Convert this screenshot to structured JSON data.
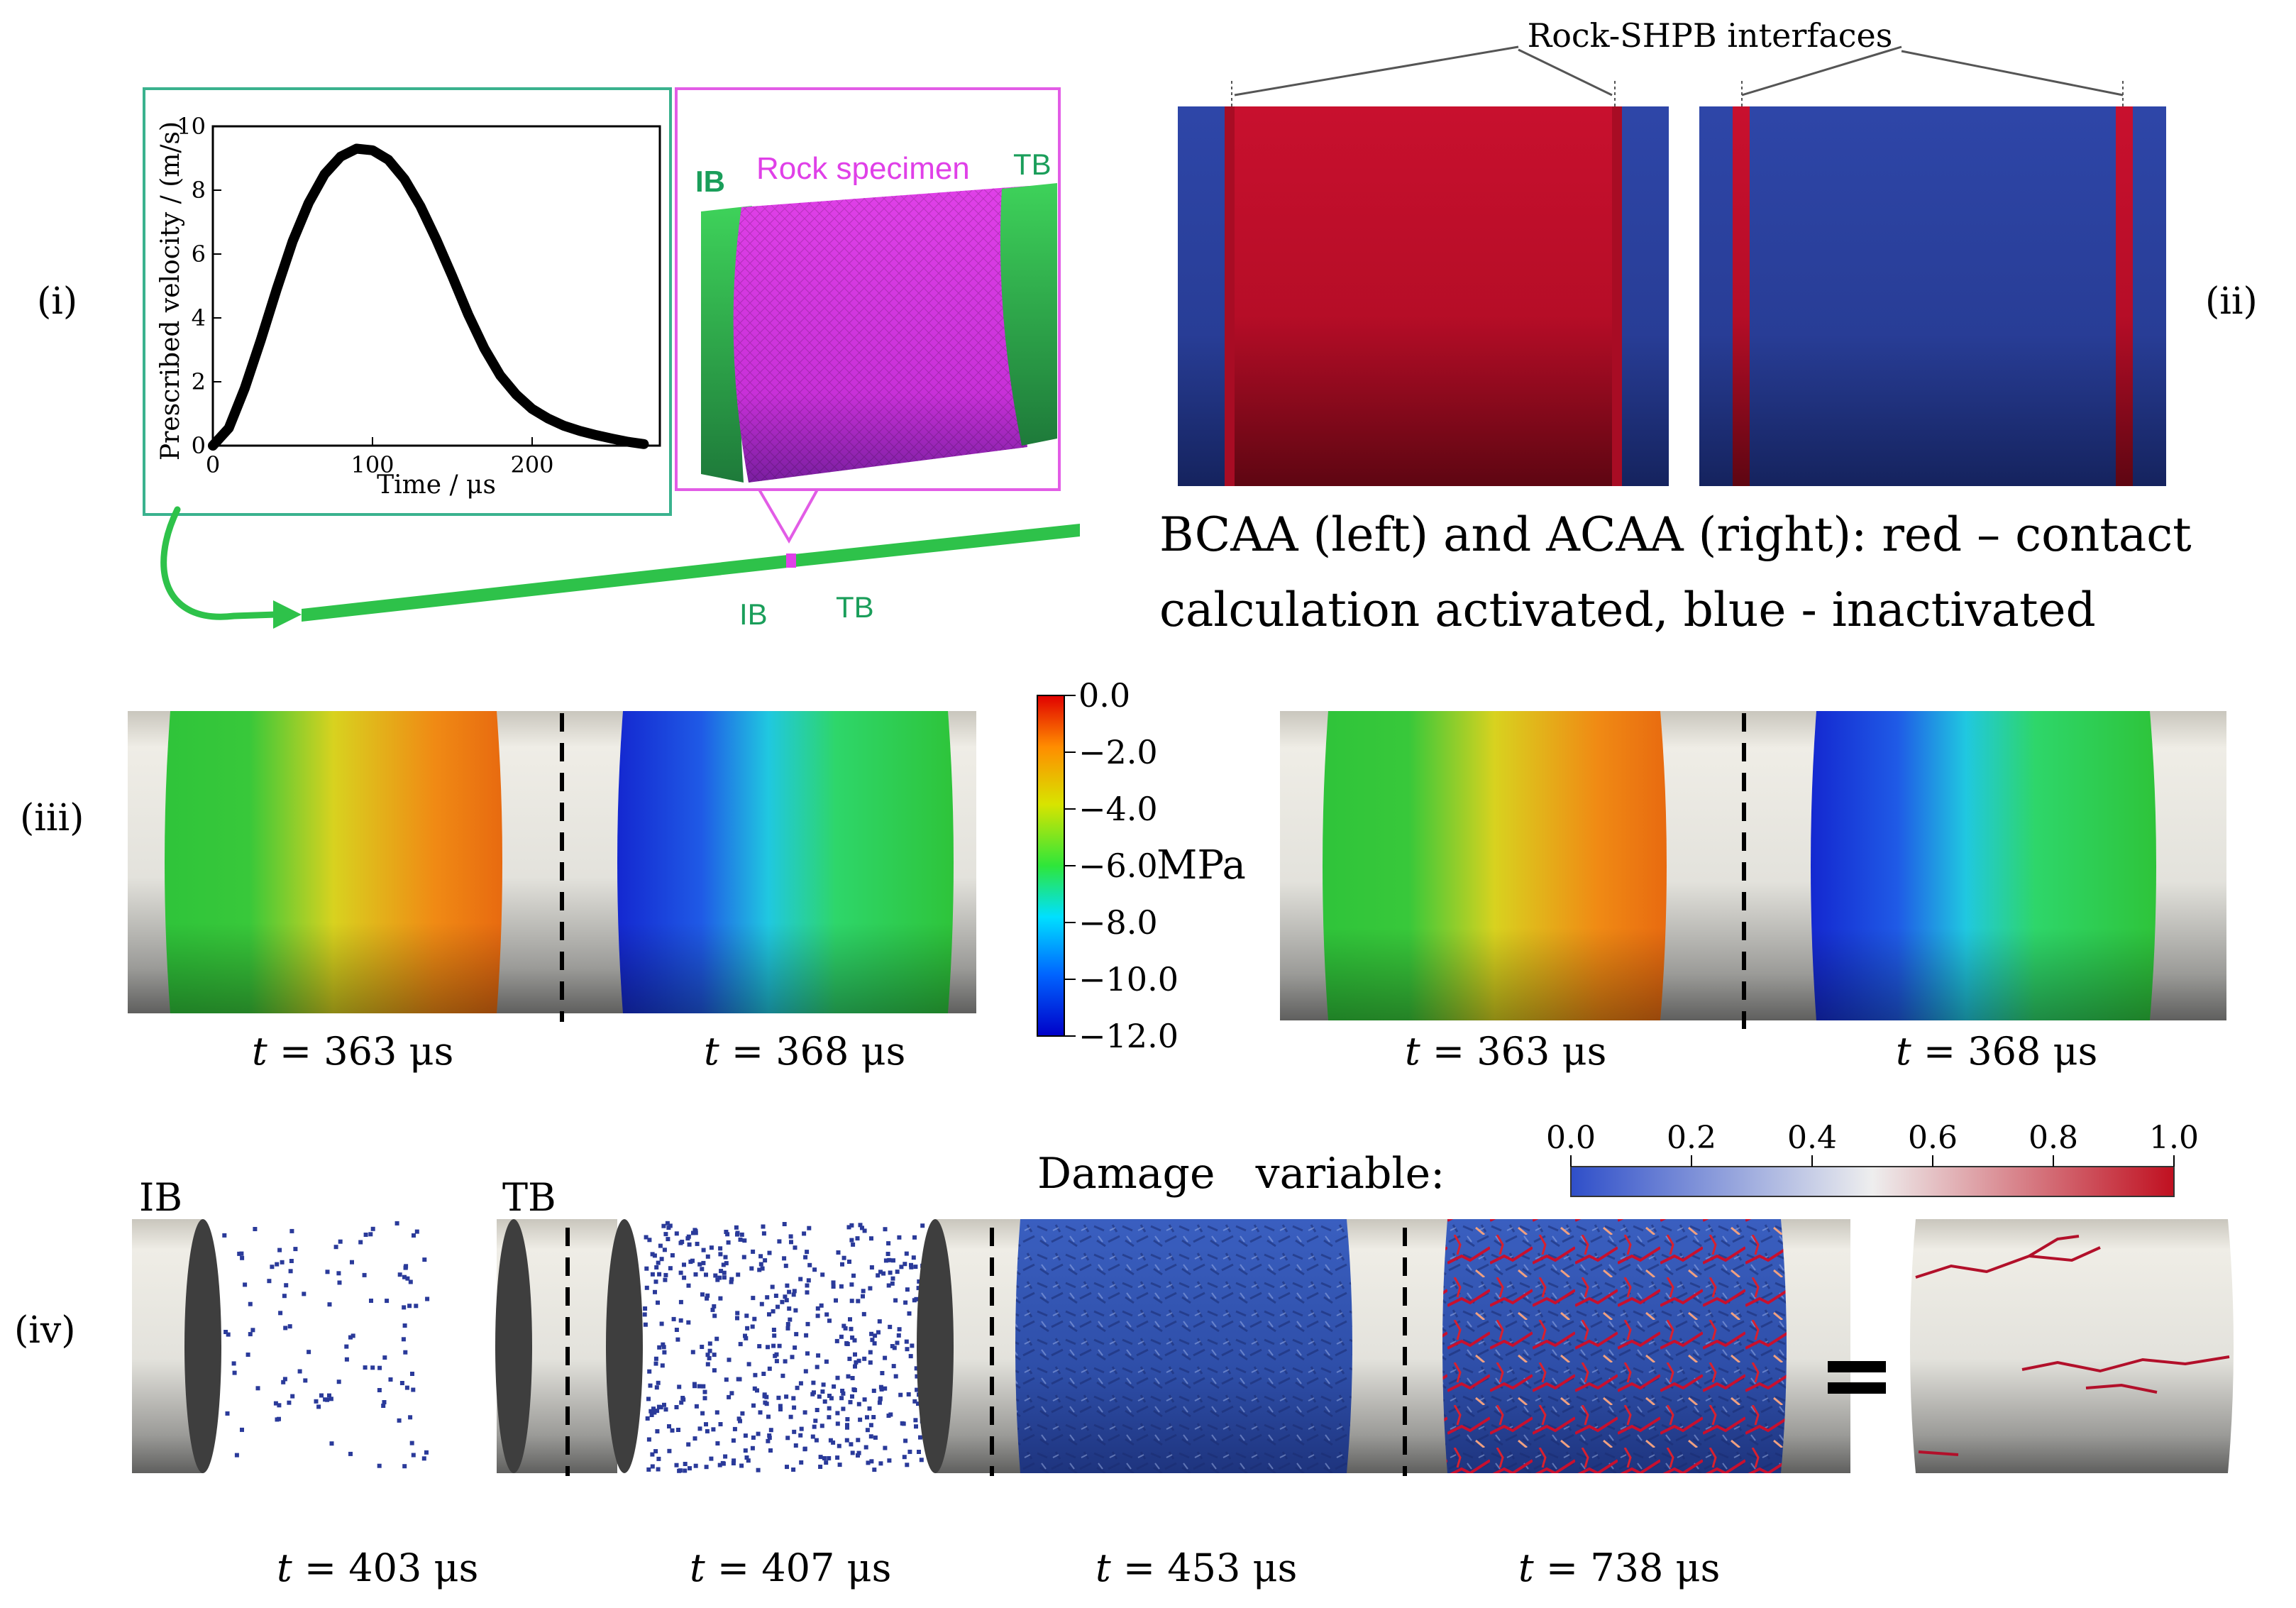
{
  "panels": {
    "i": "(i)",
    "ii": "(ii)",
    "iii": "(iii)",
    "iv": "(iv)"
  },
  "panel_i": {
    "chart_data": {
      "type": "line",
      "x": [
        0,
        10,
        20,
        30,
        40,
        50,
        60,
        70,
        80,
        90,
        100,
        110,
        120,
        130,
        140,
        150,
        160,
        170,
        180,
        190,
        200,
        210,
        220,
        230,
        240,
        250,
        260,
        270
      ],
      "y": [
        0,
        0.55,
        1.8,
        3.3,
        4.9,
        6.4,
        7.6,
        8.5,
        9.05,
        9.3,
        9.25,
        8.95,
        8.35,
        7.5,
        6.45,
        5.3,
        4.1,
        3.05,
        2.2,
        1.6,
        1.15,
        0.85,
        0.62,
        0.46,
        0.33,
        0.22,
        0.12,
        0.05
      ],
      "xlabel": "Time / μs",
      "ylabel": "Prescribed velocity / (m/s)",
      "xlim": [
        0,
        280
      ],
      "ylim": [
        0,
        10
      ],
      "xticks": [
        0,
        100,
        200
      ],
      "yticks": [
        0,
        2,
        4,
        6,
        8,
        10
      ],
      "color": "#000000"
    },
    "mesh_labels": {
      "ib": "IB",
      "rock": "Rock specimen",
      "tb": "TB"
    },
    "bar_labels": {
      "ib": "IB",
      "tb": "TB"
    }
  },
  "panel_ii": {
    "interfaces_label": "Rock-SHPB interfaces",
    "caption_line1": "BCAA (left) and ACAA (right): red – contact",
    "caption_line2": "calculation activated, blue - inactivated"
  },
  "panel_iii": {
    "colorbar": {
      "ticks": [
        "0.0",
        "−2.0",
        "−4.0",
        "−6.0",
        "−8.0",
        "−10.0",
        "−12.0"
      ],
      "unit": "MPa"
    },
    "times": {
      "left_a": "363 μs",
      "left_b": "368 μs",
      "right_a": "363 μs",
      "right_b": "368 μs"
    },
    "t_symbol": "t",
    "eq": " = "
  },
  "panel_iv": {
    "damage_label": "Damage   variable:",
    "colorbar_ticks": [
      "0.0",
      "0.2",
      "0.4",
      "0.6",
      "0.8",
      "1.0"
    ],
    "ib": "IB",
    "tb": "TB",
    "times": {
      "t1": "403 μs",
      "t2": "407 μs",
      "t3": "453 μs",
      "t4": "738 μs"
    }
  },
  "colors": {
    "green_frame": "#3ab28e",
    "magenta_frame": "#e25ce6",
    "bar_green": "#2ec24a",
    "red_active": "#c8102e",
    "blue_inactive": "#2a3f9a",
    "label_green": "#1a9e5a"
  }
}
